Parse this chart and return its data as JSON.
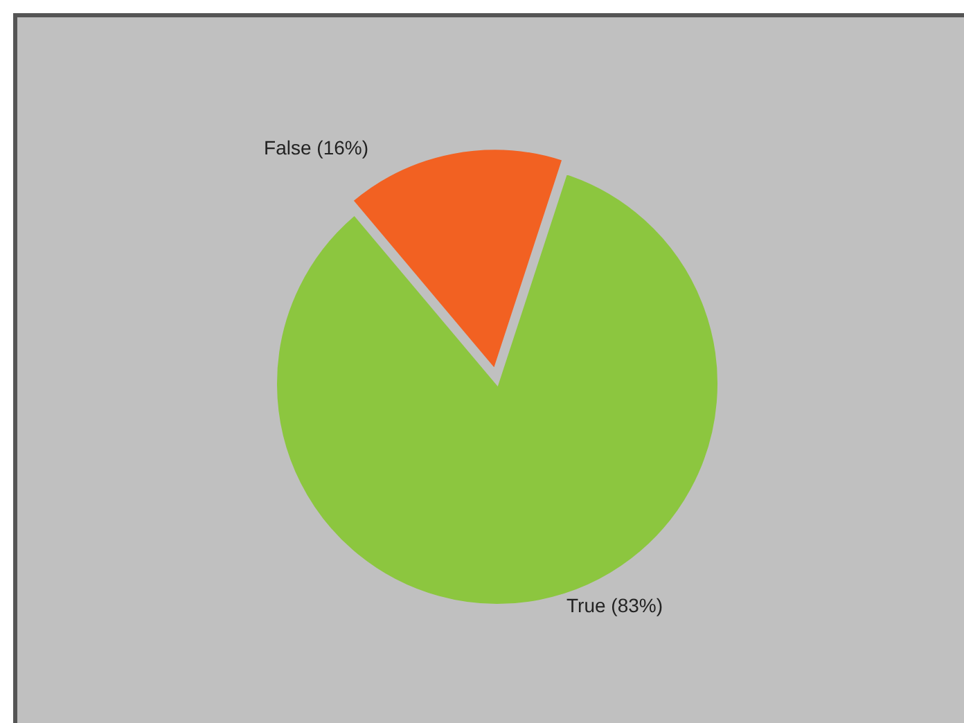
{
  "chart_data": {
    "type": "pie",
    "categories": [
      "False (16%)",
      "True (83%)"
    ],
    "values": [
      16,
      83
    ],
    "colors": [
      "#f26122",
      "#8cc63f"
    ]
  }
}
